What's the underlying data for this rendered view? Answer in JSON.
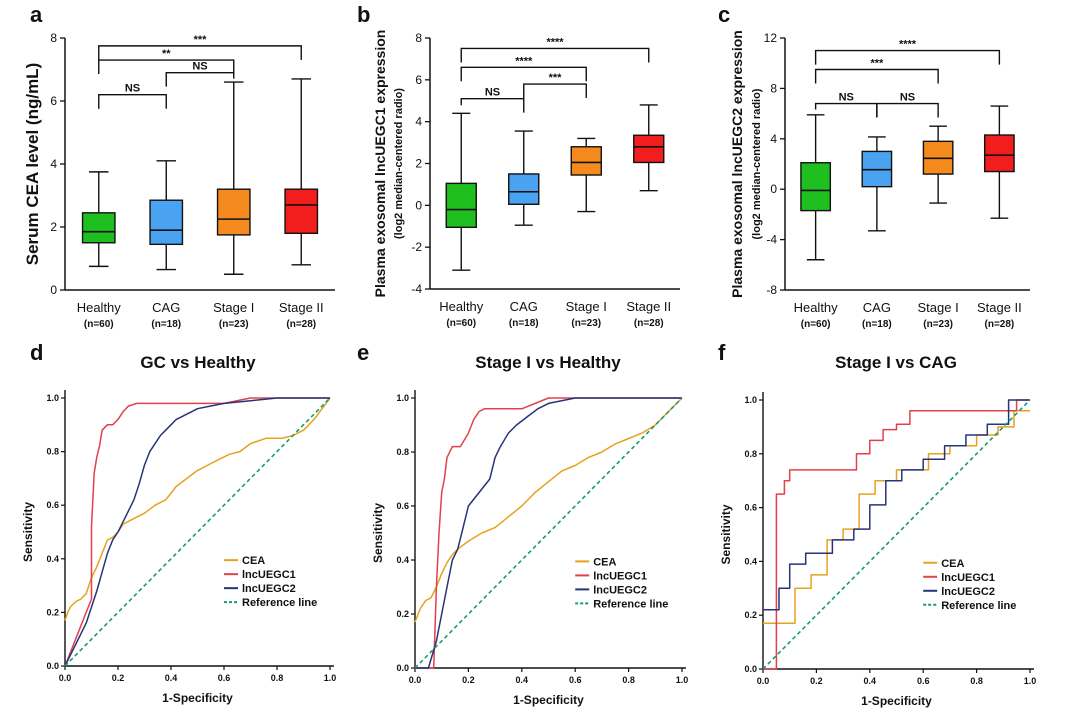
{
  "chart_data": [
    {
      "panel": "a",
      "type": "box",
      "ylabel": "Serum CEA level (ng/mL)",
      "ylabel_sub": "",
      "ylim": [
        0,
        8
      ],
      "yticks": [
        0,
        2,
        4,
        6,
        8
      ],
      "groups": [
        {
          "name": "Healthy",
          "n": "(n=60)",
          "color": "#1fbf1f",
          "whisker_low": 0.75,
          "q1": 1.5,
          "median": 1.85,
          "q3": 2.45,
          "whisker_high": 3.75
        },
        {
          "name": "CAG",
          "n": "(n=18)",
          "color": "#4aa3f0",
          "whisker_low": 0.65,
          "q1": 1.45,
          "median": 1.9,
          "q3": 2.85,
          "whisker_high": 4.1
        },
        {
          "name": "Stage I",
          "n": "(n=23)",
          "color": "#f58a1f",
          "whisker_low": 0.5,
          "q1": 1.75,
          "median": 2.25,
          "q3": 3.2,
          "whisker_high": 6.6
        },
        {
          "name": "Stage II",
          "n": "(n=28)",
          "color": "#f21d1d",
          "whisker_low": 0.8,
          "q1": 1.8,
          "median": 2.7,
          "q3": 3.2,
          "whisker_high": 6.7
        }
      ],
      "comparisons": [
        {
          "from": 0,
          "to": 1,
          "label": "NS",
          "y": 6.2
        },
        {
          "from": 1,
          "to": 2,
          "label": "NS",
          "y": 6.9
        },
        {
          "from": 0,
          "to": 2,
          "label": "**",
          "y": 7.3
        },
        {
          "from": 0,
          "to": 3,
          "label": "***",
          "y": 7.75
        }
      ]
    },
    {
      "panel": "b",
      "type": "box",
      "ylabel": "Plasma exosomal lncUEGC1 expression",
      "ylabel_sub": "(log2 median-centered radio)",
      "ylim": [
        -4,
        8
      ],
      "yticks": [
        -4,
        -2,
        0,
        2,
        4,
        6,
        8
      ],
      "groups": [
        {
          "name": "Healthy",
          "n": "(n=60)",
          "color": "#1fbf1f",
          "whisker_low": -3.1,
          "q1": -1.05,
          "median": -0.2,
          "q3": 1.05,
          "whisker_high": 4.4
        },
        {
          "name": "CAG",
          "n": "(n=18)",
          "color": "#4aa3f0",
          "whisker_low": -0.95,
          "q1": 0.05,
          "median": 0.65,
          "q3": 1.5,
          "whisker_high": 3.55
        },
        {
          "name": "Stage I",
          "n": "(n=23)",
          "color": "#f58a1f",
          "whisker_low": -0.3,
          "q1": 1.45,
          "median": 2.05,
          "q3": 2.8,
          "whisker_high": 3.2
        },
        {
          "name": "Stage II",
          "n": "(n=28)",
          "color": "#f21d1d",
          "whisker_low": 0.7,
          "q1": 2.05,
          "median": 2.8,
          "q3": 3.35,
          "whisker_high": 4.8
        }
      ],
      "comparisons": [
        {
          "from": 0,
          "to": 1,
          "label": "NS",
          "y": 5.1
        },
        {
          "from": 1,
          "to": 2,
          "label": "***",
          "y": 5.8
        },
        {
          "from": 0,
          "to": 2,
          "label": "****",
          "y": 6.6
        },
        {
          "from": 0,
          "to": 3,
          "label": "****",
          "y": 7.5
        }
      ]
    },
    {
      "panel": "c",
      "type": "box",
      "ylabel": "Plasma exosomal lncUEGC2 expression",
      "ylabel_sub": "(log2 median-centered radio)",
      "ylim": [
        -8,
        12
      ],
      "yticks": [
        -8,
        -4,
        0,
        4,
        8,
        12
      ],
      "groups": [
        {
          "name": "Healthy",
          "n": "(n=60)",
          "color": "#1fbf1f",
          "whisker_low": -5.6,
          "q1": -1.7,
          "median": -0.1,
          "q3": 2.1,
          "whisker_high": 5.9
        },
        {
          "name": "CAG",
          "n": "(n=18)",
          "color": "#4aa3f0",
          "whisker_low": -3.3,
          "q1": 0.2,
          "median": 1.55,
          "q3": 3.0,
          "whisker_high": 4.15
        },
        {
          "name": "Stage I",
          "n": "(n=23)",
          "color": "#f58a1f",
          "whisker_low": -1.1,
          "q1": 1.2,
          "median": 2.45,
          "q3": 3.8,
          "whisker_high": 5.0
        },
        {
          "name": "Stage II",
          "n": "(n=28)",
          "color": "#f21d1d",
          "whisker_low": -2.3,
          "q1": 1.4,
          "median": 2.7,
          "q3": 4.3,
          "whisker_high": 6.6
        }
      ],
      "comparisons": [
        {
          "from": 0,
          "to": 1,
          "label": "NS",
          "y": 6.8
        },
        {
          "from": 1,
          "to": 2,
          "label": "NS",
          "y": 6.8
        },
        {
          "from": 0,
          "to": 2,
          "label": "***",
          "y": 9.5
        },
        {
          "from": 0,
          "to": 3,
          "label": "****",
          "y": 11.0
        }
      ]
    },
    {
      "panel": "d",
      "type": "line",
      "title": "GC vs Healthy",
      "xlabel": "1-Specificity",
      "ylabel": "Sensitivity",
      "xlim": [
        0,
        1
      ],
      "ylim": [
        0,
        1
      ],
      "ticks": [
        "0.0",
        "0.2",
        "0.4",
        "0.6",
        "0.8",
        "1.0"
      ],
      "series": [
        {
          "name": "CEA",
          "color": "#e6a21e",
          "x": [
            0,
            0.01,
            0.02,
            0.04,
            0.06,
            0.08,
            0.1,
            0.12,
            0.14,
            0.16,
            0.18,
            0.2,
            0.22,
            0.26,
            0.3,
            0.34,
            0.38,
            0.42,
            0.46,
            0.5,
            0.54,
            0.58,
            0.62,
            0.66,
            0.7,
            0.76,
            0.82,
            0.86,
            0.9,
            0.94,
            0.97,
            1.0
          ],
          "y": [
            0.17,
            0.2,
            0.22,
            0.24,
            0.25,
            0.27,
            0.33,
            0.37,
            0.42,
            0.47,
            0.48,
            0.5,
            0.53,
            0.55,
            0.57,
            0.6,
            0.62,
            0.67,
            0.7,
            0.73,
            0.75,
            0.77,
            0.79,
            0.8,
            0.83,
            0.85,
            0.85,
            0.86,
            0.88,
            0.92,
            0.96,
            1.0
          ]
        },
        {
          "name": "lncUEGC1",
          "color": "#e0414b",
          "x": [
            0,
            0.02,
            0.04,
            0.06,
            0.08,
            0.1,
            0.1,
            0.11,
            0.12,
            0.13,
            0.14,
            0.16,
            0.18,
            0.2,
            0.22,
            0.24,
            0.27,
            0.32,
            0.4,
            0.5,
            0.6,
            0.7,
            0.8,
            0.9,
            1.0
          ],
          "y": [
            0,
            0.05,
            0.1,
            0.15,
            0.2,
            0.25,
            0.52,
            0.72,
            0.78,
            0.82,
            0.88,
            0.9,
            0.9,
            0.92,
            0.95,
            0.97,
            0.98,
            0.98,
            0.98,
            0.98,
            0.98,
            1.0,
            1.0,
            1.0,
            1.0
          ]
        },
        {
          "name": "lncUEGC2",
          "color": "#26347a",
          "x": [
            0,
            0.02,
            0.04,
            0.06,
            0.08,
            0.1,
            0.12,
            0.14,
            0.16,
            0.18,
            0.2,
            0.22,
            0.24,
            0.26,
            0.28,
            0.3,
            0.32,
            0.34,
            0.36,
            0.38,
            0.4,
            0.42,
            0.44,
            0.46,
            0.48,
            0.5,
            0.55,
            0.6,
            0.7,
            0.8,
            0.9,
            1.0
          ],
          "y": [
            0,
            0.04,
            0.08,
            0.12,
            0.16,
            0.22,
            0.28,
            0.35,
            0.42,
            0.47,
            0.5,
            0.54,
            0.58,
            0.62,
            0.68,
            0.75,
            0.8,
            0.83,
            0.86,
            0.88,
            0.9,
            0.92,
            0.93,
            0.94,
            0.95,
            0.96,
            0.97,
            0.98,
            0.99,
            1.0,
            1.0,
            1.0
          ]
        },
        {
          "name": "Reference line",
          "color": "#169c6e",
          "dashed": true,
          "x": [
            0,
            1
          ],
          "y": [
            0,
            1
          ]
        }
      ]
    },
    {
      "panel": "e",
      "type": "line",
      "title": "Stage I vs Healthy",
      "xlabel": "1-Specificity",
      "ylabel": "Sensitivity",
      "xlim": [
        0,
        1
      ],
      "ylim": [
        0,
        1
      ],
      "ticks": [
        "0.0",
        "0.2",
        "0.4",
        "0.6",
        "0.8",
        "1.0"
      ],
      "series": [
        {
          "name": "CEA",
          "color": "#e6a21e",
          "x": [
            0,
            0.02,
            0.04,
            0.06,
            0.08,
            0.1,
            0.12,
            0.14,
            0.16,
            0.2,
            0.25,
            0.3,
            0.35,
            0.4,
            0.45,
            0.5,
            0.55,
            0.6,
            0.65,
            0.7,
            0.75,
            0.8,
            0.85,
            0.9,
            0.95,
            1.0
          ],
          "y": [
            0.17,
            0.22,
            0.25,
            0.26,
            0.3,
            0.35,
            0.39,
            0.42,
            0.44,
            0.47,
            0.5,
            0.52,
            0.56,
            0.6,
            0.65,
            0.69,
            0.73,
            0.75,
            0.78,
            0.8,
            0.83,
            0.85,
            0.87,
            0.9,
            0.95,
            1.0
          ]
        },
        {
          "name": "lncUEGC1",
          "color": "#e0414b",
          "x": [
            0,
            0.07,
            0.08,
            0.09,
            0.1,
            0.11,
            0.12,
            0.14,
            0.17,
            0.2,
            0.22,
            0.24,
            0.26,
            0.3,
            0.4,
            0.5,
            0.6,
            0.7,
            0.8,
            0.9,
            1.0
          ],
          "y": [
            0,
            0.0,
            0.3,
            0.5,
            0.65,
            0.7,
            0.78,
            0.82,
            0.82,
            0.87,
            0.92,
            0.95,
            0.96,
            0.96,
            0.96,
            1.0,
            1.0,
            1.0,
            1.0,
            1.0,
            1.0
          ]
        },
        {
          "name": "lncUEGC2",
          "color": "#26347a",
          "x": [
            0,
            0.05,
            0.08,
            0.1,
            0.12,
            0.14,
            0.16,
            0.18,
            0.2,
            0.24,
            0.28,
            0.3,
            0.32,
            0.35,
            0.38,
            0.42,
            0.46,
            0.5,
            0.6,
            0.7,
            0.8,
            1.0
          ],
          "y": [
            0,
            0.0,
            0.1,
            0.2,
            0.3,
            0.4,
            0.44,
            0.52,
            0.6,
            0.65,
            0.7,
            0.78,
            0.82,
            0.87,
            0.9,
            0.93,
            0.96,
            0.98,
            1.0,
            1.0,
            1.0,
            1.0
          ]
        },
        {
          "name": "Reference line",
          "color": "#169c6e",
          "dashed": true,
          "x": [
            0,
            1
          ],
          "y": [
            0,
            1
          ]
        }
      ]
    },
    {
      "panel": "f",
      "type": "line",
      "title": "Stage I vs CAG",
      "xlabel": "1-Specificity",
      "ylabel": "Sensitivity",
      "xlim": [
        0,
        1
      ],
      "ylim": [
        0,
        1
      ],
      "ticks": [
        "0.0",
        "0.2",
        "0.4",
        "0.6",
        "0.8",
        "1.0"
      ],
      "series": [
        {
          "name": "CEA",
          "color": "#e6a21e",
          "x": [
            0,
            0.06,
            0.06,
            0.12,
            0.12,
            0.18,
            0.18,
            0.24,
            0.24,
            0.3,
            0.3,
            0.36,
            0.36,
            0.42,
            0.42,
            0.5,
            0.5,
            0.62,
            0.62,
            0.7,
            0.7,
            0.8,
            0.8,
            0.88,
            0.88,
            0.94,
            0.94,
            1.0
          ],
          "y": [
            0.17,
            0.17,
            0.17,
            0.17,
            0.3,
            0.3,
            0.35,
            0.35,
            0.48,
            0.48,
            0.52,
            0.52,
            0.65,
            0.65,
            0.7,
            0.7,
            0.74,
            0.74,
            0.8,
            0.8,
            0.83,
            0.83,
            0.87,
            0.87,
            0.9,
            0.9,
            0.96,
            0.96
          ]
        },
        {
          "name": "lncUEGC1",
          "color": "#e0414b",
          "x": [
            0,
            0.05,
            0.05,
            0.08,
            0.08,
            0.1,
            0.1,
            0.35,
            0.35,
            0.4,
            0.4,
            0.45,
            0.45,
            0.5,
            0.5,
            0.55,
            0.55,
            0.95,
            0.95,
            1.0
          ],
          "y": [
            0,
            0,
            0.65,
            0.65,
            0.7,
            0.7,
            0.74,
            0.74,
            0.8,
            0.8,
            0.85,
            0.85,
            0.89,
            0.89,
            0.91,
            0.91,
            0.96,
            0.96,
            1.0,
            1.0
          ]
        },
        {
          "name": "lncUEGC2",
          "color": "#26347a",
          "x": [
            0,
            0.06,
            0.06,
            0.1,
            0.1,
            0.16,
            0.16,
            0.26,
            0.26,
            0.34,
            0.34,
            0.4,
            0.4,
            0.46,
            0.46,
            0.52,
            0.52,
            0.6,
            0.6,
            0.68,
            0.68,
            0.76,
            0.76,
            0.84,
            0.84,
            0.92,
            0.92,
            1.0
          ],
          "y": [
            0.22,
            0.22,
            0.3,
            0.3,
            0.39,
            0.39,
            0.43,
            0.43,
            0.48,
            0.48,
            0.52,
            0.52,
            0.61,
            0.61,
            0.7,
            0.7,
            0.74,
            0.74,
            0.78,
            0.78,
            0.83,
            0.83,
            0.87,
            0.87,
            0.91,
            0.91,
            1.0,
            1.0
          ]
        },
        {
          "name": "Reference line",
          "color": "#169c6e",
          "dashed": true,
          "x": [
            0,
            1
          ],
          "y": [
            0,
            1
          ]
        }
      ]
    }
  ]
}
